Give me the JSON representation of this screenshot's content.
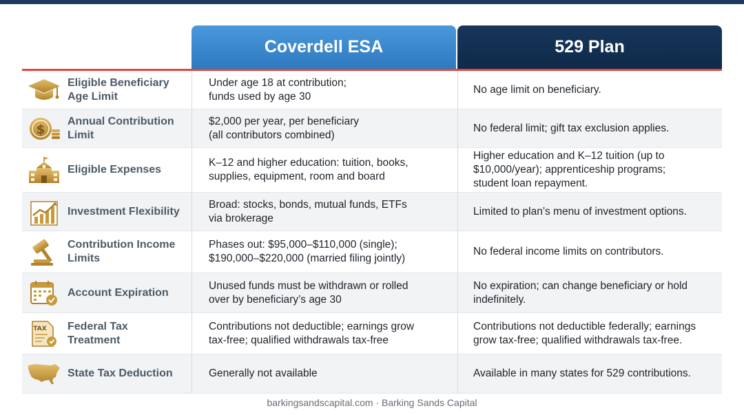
{
  "columns": {
    "coverdell": "Coverdell ESA",
    "plan529": "529 Plan"
  },
  "rows": [
    {
      "icon": "graduation-cap-icon",
      "label": "Eligible Beneficiary\nAge Limit",
      "coverdell": "Under age 18 at contribution;\nfunds used by age 30",
      "plan529": "No age limit on beneficiary."
    },
    {
      "icon": "coins-icon",
      "label": "Annual Contribution\nLimit",
      "coverdell": "$2,000 per year, per beneficiary\n(all contributors combined)",
      "plan529": "No federal limit; gift tax exclusion applies."
    },
    {
      "icon": "school-building-icon",
      "label": "Eligible Expenses",
      "coverdell": "K–12 and higher education: tuition, books,\nsupplies, equipment, room and board",
      "plan529": "Higher education and K–12 tuition (up to\n$10,000/year); apprenticeship programs;\nstudent loan repayment."
    },
    {
      "icon": "growth-chart-icon",
      "label": "Investment Flexibility",
      "coverdell": "Broad: stocks, bonds, mutual funds, ETFs\nvia brokerage",
      "plan529": "Limited to plan’s menu of investment options."
    },
    {
      "icon": "gavel-icon",
      "label": "Contribution Income\nLimits",
      "coverdell": "Phases out: $95,000–$110,000 (single);\n$190,000–$220,000 (married filing jointly)",
      "plan529": "No federal income limits on contributors."
    },
    {
      "icon": "calendar-check-icon",
      "label": "Account Expiration",
      "coverdell": "Unused funds must be withdrawn or rolled\nover by beneficiary’s age 30",
      "plan529": "No expiration; can change beneficiary or hold\nindefinitely."
    },
    {
      "icon": "tax-document-icon",
      "label": "Federal Tax\nTreatment",
      "coverdell": "Contributions not deductible; earnings grow\ntax-free; qualified withdrawals tax-free",
      "plan529": "Contributions not deductible federally; earnings\ngrow tax-free; qualified withdrawals tax-free."
    },
    {
      "icon": "usa-map-icon",
      "label": "State Tax Deduction",
      "coverdell": "Generally not available",
      "plan529": "Available in many states for 529 contributions."
    }
  ],
  "icon_text": {
    "tax": "TAX"
  },
  "colors": {
    "gold": "#c99a3a",
    "header_blue": "#3a87cf",
    "header_navy": "#13314f",
    "accent_red": "#e0463b"
  },
  "footer": "barkingsandscapital.com · Barking Sands Capital"
}
